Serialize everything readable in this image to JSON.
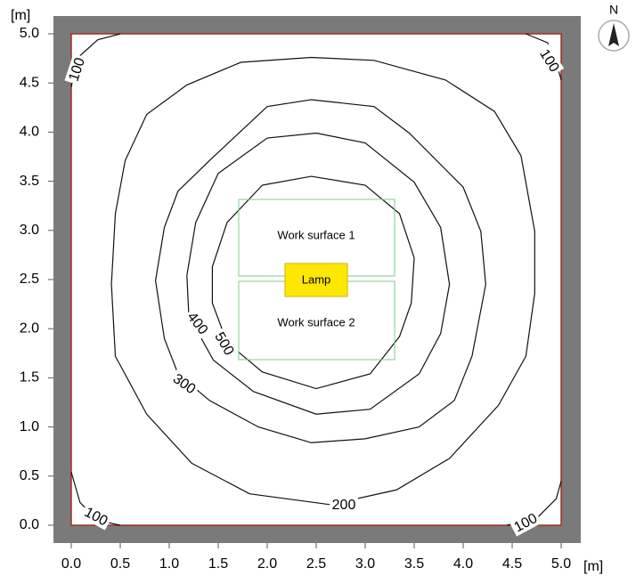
{
  "chart_data": {
    "type": "contour",
    "x_label": "[m]",
    "y_label": "[m]",
    "compass": "N",
    "xlim": [
      0,
      5
    ],
    "ylim": [
      0,
      5
    ],
    "xticks": [
      {
        "value": 0,
        "label": "0.0"
      },
      {
        "value": 0.5,
        "label": "0.5"
      },
      {
        "value": 1,
        "label": "1.0"
      },
      {
        "value": 1.5,
        "label": "1.5"
      },
      {
        "value": 2,
        "label": "2.0"
      },
      {
        "value": 2.5,
        "label": "2.5"
      },
      {
        "value": 3,
        "label": "3.0"
      },
      {
        "value": 3.5,
        "label": "3.5"
      },
      {
        "value": 4,
        "label": "4.0"
      },
      {
        "value": 4.5,
        "label": "4.5"
      },
      {
        "value": 5,
        "label": "5.0"
      }
    ],
    "yticks": [
      {
        "value": 0,
        "label": "0.0"
      },
      {
        "value": 0.5,
        "label": "0.5"
      },
      {
        "value": 1,
        "label": "1.0"
      },
      {
        "value": 1.5,
        "label": "1.5"
      },
      {
        "value": 2,
        "label": "2.0"
      },
      {
        "value": 2.5,
        "label": "2.5"
      },
      {
        "value": 3,
        "label": "3.0"
      },
      {
        "value": 3.5,
        "label": "3.5"
      },
      {
        "value": 4,
        "label": "4.0"
      },
      {
        "value": 4.5,
        "label": "4.5"
      },
      {
        "value": 5,
        "label": "5.0"
      }
    ],
    "objects": [
      "Work surface 1",
      "Work surface 2",
      "Lamp"
    ],
    "series": [
      {
        "level": 100,
        "closed": false,
        "x": [
          0,
          0.07,
          0.27,
          0.5
        ],
        "y": [
          4.46,
          4.76,
          4.94,
          5.0
        ]
      },
      {
        "level": 100,
        "closed": false,
        "x": [
          4.64,
          4.86,
          4.95,
          5.0
        ],
        "y": [
          5.0,
          4.91,
          4.71,
          4.53
        ]
      },
      {
        "level": 100,
        "closed": false,
        "x": [
          0,
          0.09,
          0.27,
          0.5
        ],
        "y": [
          0.54,
          0.23,
          0.05,
          0.0
        ]
      },
      {
        "level": 100,
        "closed": false,
        "x": [
          4.45,
          4.77,
          4.95,
          5.0
        ],
        "y": [
          0.0,
          0.09,
          0.27,
          0.45
        ]
      },
      {
        "level": 200,
        "closed": true,
        "x": [
          0.77,
          1.18,
          1.73,
          2.45,
          3.09,
          3.82,
          4.32,
          4.59,
          4.73,
          4.73,
          4.64,
          4.36,
          3.86,
          3.32,
          2.64,
          1.82,
          1.23,
          0.77,
          0.45,
          0.41,
          0.45,
          0.55
        ],
        "y": [
          4.18,
          4.48,
          4.71,
          4.76,
          4.73,
          4.53,
          4.21,
          3.76,
          2.99,
          2.36,
          1.72,
          1.22,
          0.68,
          0.36,
          0.21,
          0.32,
          0.63,
          1.13,
          1.72,
          2.45,
          3.17,
          3.71
        ]
      },
      {
        "level": 300,
        "closed": true,
        "x": [
          1.09,
          1.41,
          2.0,
          2.45,
          3.09,
          3.45,
          4.0,
          4.18,
          4.23,
          4.09,
          3.91,
          3.55,
          3.0,
          2.45,
          1.91,
          1.41,
          1.09,
          0.95,
          0.86,
          0.95
        ],
        "y": [
          3.4,
          3.71,
          4.26,
          4.33,
          4.26,
          3.99,
          3.44,
          2.99,
          2.45,
          1.72,
          1.27,
          1.0,
          0.88,
          0.84,
          1.0,
          1.27,
          1.54,
          1.9,
          2.49,
          3.03
        ]
      },
      {
        "level": 400,
        "closed": true,
        "x": [
          1.5,
          2.0,
          2.5,
          3.0,
          3.5,
          3.77,
          3.86,
          3.77,
          3.55,
          3.05,
          2.5,
          1.86,
          1.45,
          1.2,
          1.18,
          1.27
        ],
        "y": [
          3.58,
          3.94,
          3.99,
          3.89,
          3.49,
          3.03,
          2.45,
          1.95,
          1.54,
          1.18,
          1.13,
          1.36,
          1.68,
          2.13,
          2.54,
          3.08
        ]
      },
      {
        "level": 500,
        "closed": true,
        "x": [
          1.95,
          2.45,
          3.0,
          3.35,
          3.5,
          3.47,
          3.35,
          3.05,
          2.5,
          1.95,
          1.59,
          1.44,
          1.44,
          1.59
        ],
        "y": [
          3.46,
          3.55,
          3.46,
          3.17,
          2.72,
          2.26,
          1.92,
          1.54,
          1.39,
          1.56,
          1.86,
          2.26,
          2.63,
          3.08
        ]
      }
    ]
  }
}
